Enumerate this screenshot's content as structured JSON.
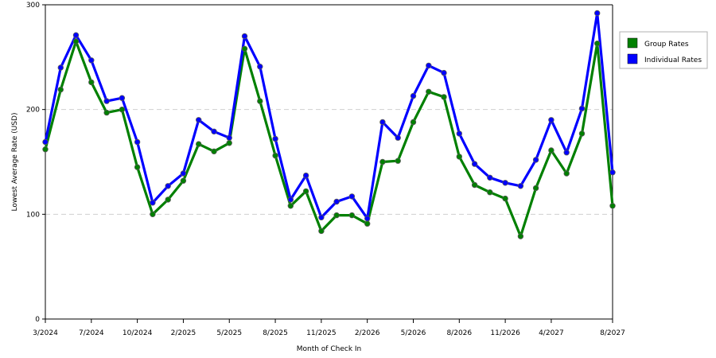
{
  "chart_data": {
    "type": "line",
    "xlabel": "Month of Check In",
    "ylabel": "Lowest Average Rate (USD)",
    "ylim": [
      0,
      300
    ],
    "yticks": [
      0,
      100,
      200,
      300
    ],
    "grid": "horizontal dashed",
    "legend_position": "right",
    "n_points": 38,
    "x_tick_labels": [
      {
        "index": 0,
        "label": "3/2024"
      },
      {
        "index": 3,
        "label": "7/2024"
      },
      {
        "index": 6,
        "label": "10/2024"
      },
      {
        "index": 9,
        "label": "2/2025"
      },
      {
        "index": 12,
        "label": "5/2025"
      },
      {
        "index": 15,
        "label": "8/2025"
      },
      {
        "index": 18,
        "label": "11/2025"
      },
      {
        "index": 21,
        "label": "2/2026"
      },
      {
        "index": 24,
        "label": "5/2026"
      },
      {
        "index": 27,
        "label": "8/2026"
      },
      {
        "index": 30,
        "label": "11/2026"
      },
      {
        "index": 33,
        "label": "4/2027"
      },
      {
        "index": 37,
        "label": "8/2027"
      }
    ],
    "series": [
      {
        "name": "Group Rates",
        "color": "#008000",
        "values": [
          162,
          219,
          265,
          226,
          197,
          200,
          145,
          100,
          114,
          132,
          167,
          160,
          168,
          258,
          208,
          156,
          108,
          122,
          84,
          99,
          99,
          91,
          150,
          151,
          188,
          217,
          212,
          155,
          128,
          121,
          115,
          79,
          125,
          161,
          139,
          177,
          263,
          108
        ]
      },
      {
        "name": "Individual Rates",
        "color": "#0000ff",
        "values": [
          169,
          240,
          271,
          247,
          208,
          211,
          169,
          111,
          127,
          139,
          190,
          179,
          173,
          270,
          241,
          172,
          114,
          137,
          97,
          112,
          117,
          96,
          188,
          173,
          213,
          242,
          235,
          177,
          148,
          135,
          130,
          127,
          152,
          190,
          159,
          201,
          292,
          140
        ]
      }
    ]
  }
}
